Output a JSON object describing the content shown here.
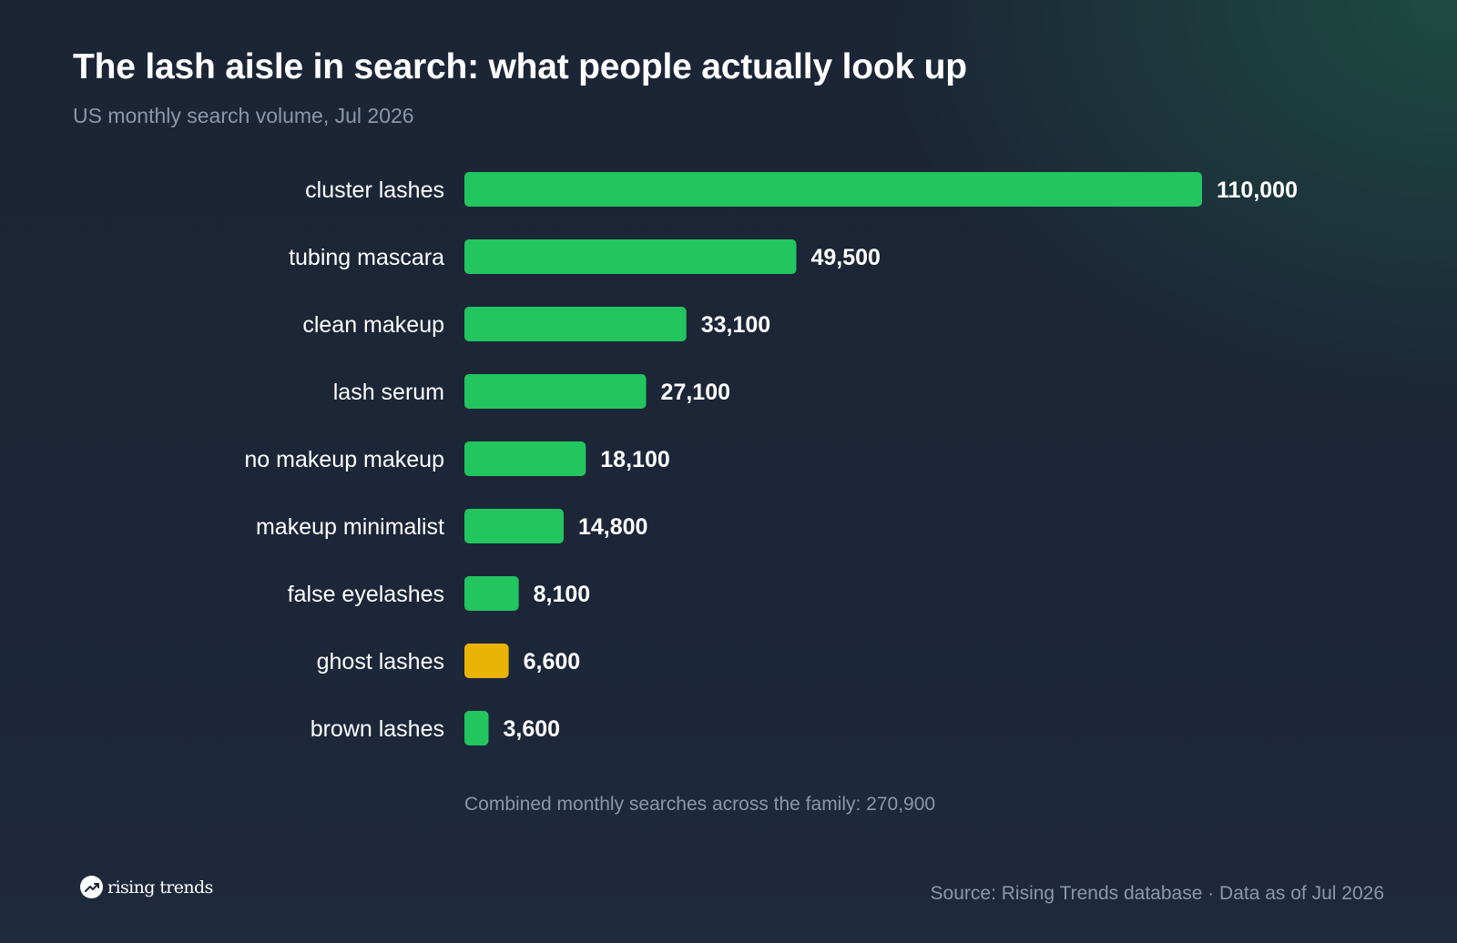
{
  "title": "The lash aisle in search: what people actually look up",
  "subtitle": "US monthly search volume, Jul 2026",
  "footnote": "Combined monthly searches across the family: 270,900",
  "brand": {
    "name": "rising trends",
    "icon": "trend-arrow-icon"
  },
  "source": "Source: Rising Trends database · Data as of Jul 2026",
  "colors": {
    "bar": "#22c55e",
    "highlight": "#eab308",
    "label": "#ffffff",
    "muted": "#8b97ab"
  },
  "chart_data": {
    "type": "bar",
    "orientation": "horizontal",
    "categories": [
      "cluster lashes",
      "tubing mascara",
      "clean makeup",
      "lash serum",
      "no makeup makeup",
      "makeup minimalist",
      "false eyelashes",
      "ghost lashes",
      "brown lashes"
    ],
    "values": [
      110000,
      49500,
      33100,
      27100,
      18100,
      14800,
      8100,
      6600,
      3600
    ],
    "value_labels": [
      "110,000",
      "49,500",
      "33,100",
      "27,100",
      "18,100",
      "14,800",
      "8,100",
      "6,600",
      "3,600"
    ],
    "highlight": [
      "ghost lashes"
    ],
    "xlim": [
      0,
      110000
    ],
    "grid": false,
    "legend": "none"
  }
}
